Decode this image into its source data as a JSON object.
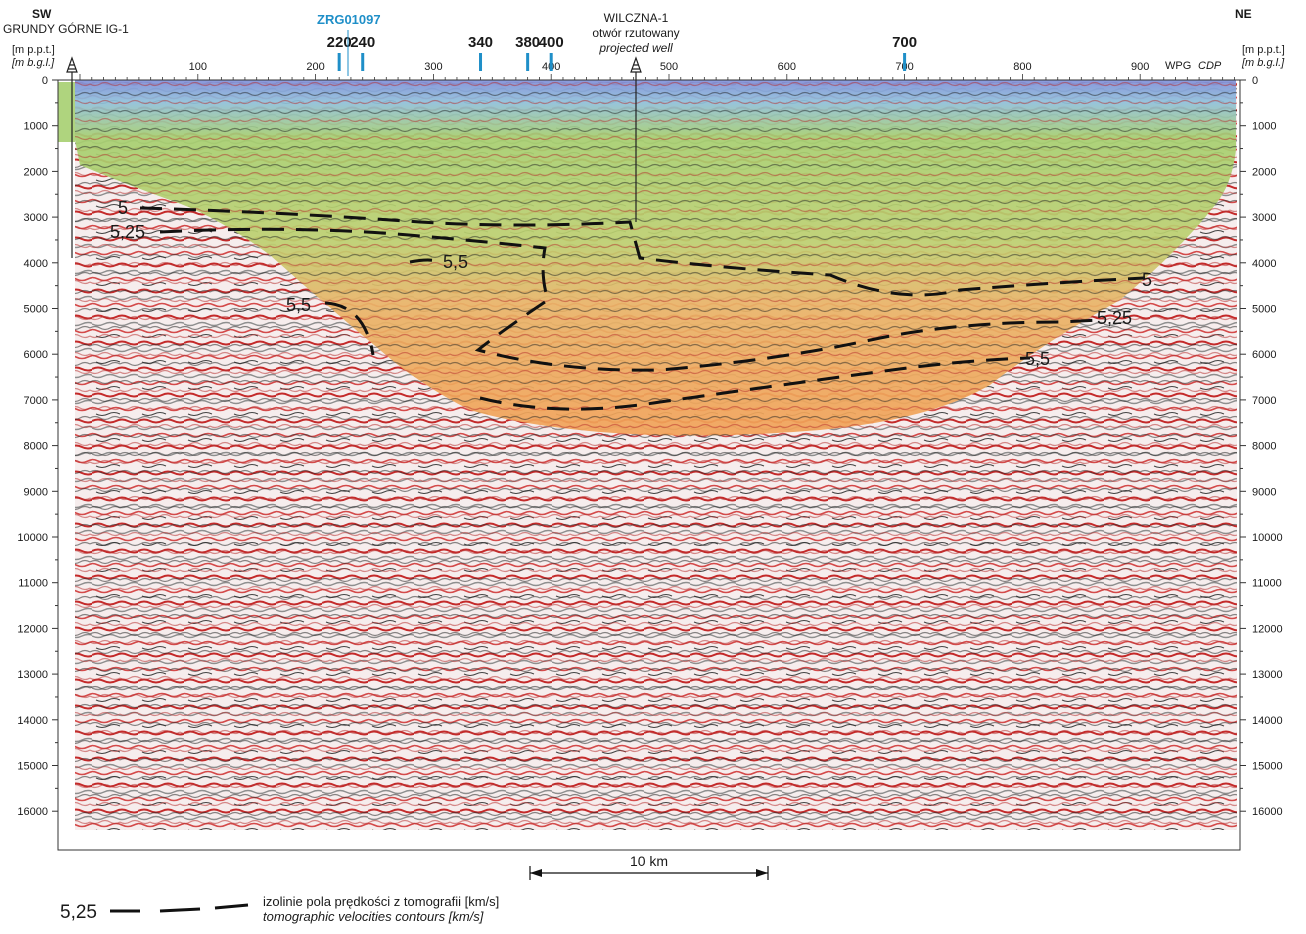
{
  "header": {
    "left_direction": "SW",
    "right_direction": "NE",
    "left_well": "GRUNDY GÓRNE IG-1",
    "units_top": "[m p.p.t.]",
    "units_bottom": "[m b.g.l.]",
    "center_well_name": "WILCZNA-1",
    "center_well_pl": "otwór rzutowany",
    "center_well_en": "projected well",
    "crossing_profile": "ZRG01097",
    "cdp_wpg": "WPG",
    "cdp_label": "CDP"
  },
  "crossing_markers": [
    {
      "label": "220",
      "cdp": 220
    },
    {
      "label": "240",
      "cdp": 240
    },
    {
      "label": "340",
      "cdp": 340
    },
    {
      "label": "380",
      "cdp": 380
    },
    {
      "label": "400",
      "cdp": 400
    },
    {
      "label": "700",
      "cdp": 700
    }
  ],
  "cdp_ticks": [
    {
      "label": "100",
      "cdp": 100
    },
    {
      "label": "200",
      "cdp": 200
    },
    {
      "label": "300",
      "cdp": 300
    },
    {
      "label": "400",
      "cdp": 400
    },
    {
      "label": "500",
      "cdp": 500
    },
    {
      "label": "600",
      "cdp": 600
    },
    {
      "label": "700",
      "cdp": 700
    },
    {
      "label": "800",
      "cdp": 800
    },
    {
      "label": "900",
      "cdp": 900
    }
  ],
  "depth_ticks": [
    "0",
    "1000",
    "2000",
    "3000",
    "4000",
    "5000",
    "6000",
    "7000",
    "8000",
    "9000",
    "10000",
    "11000",
    "12000",
    "13000",
    "14000",
    "15000",
    "16000"
  ],
  "velocity_contours": [
    {
      "label": "5",
      "label2": "5"
    },
    {
      "label": "5,25",
      "label2": "5,25"
    },
    {
      "label": "5,5",
      "label2": "5,5"
    }
  ],
  "inner_labels": [
    "5,5"
  ],
  "scale_bar": "10 km",
  "legend": {
    "sample_value": "5,25",
    "text_pl": "izolinie pola prędkości z tomografii [km/s]",
    "text_en": "tomographic velocities contours [km/s]"
  },
  "colors": {
    "seismic_red": "#cc2222",
    "seismic_dark": "#333333",
    "velocity_blue": "#7f93d8",
    "velocity_green": "#9fcc6a",
    "velocity_orange": "#f2a45a",
    "marker_blue": "#1f8fc8"
  }
}
